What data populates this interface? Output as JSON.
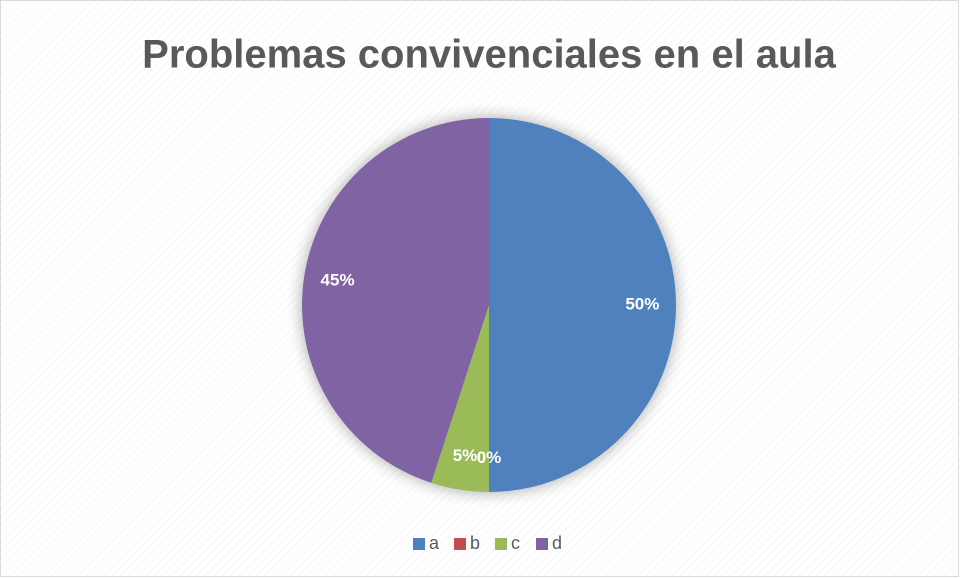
{
  "chart_data": {
    "type": "pie",
    "title": "Problemas convivenciales en el aula",
    "categories": [
      "a",
      "b",
      "c",
      "d"
    ],
    "values": [
      50,
      0,
      5,
      45
    ],
    "value_labels": [
      "50%",
      "0%",
      "5%",
      "45%"
    ],
    "colors": [
      "#4f81bd",
      "#c0504d",
      "#9bbb59",
      "#8064a2"
    ],
    "legend": "bottom"
  }
}
